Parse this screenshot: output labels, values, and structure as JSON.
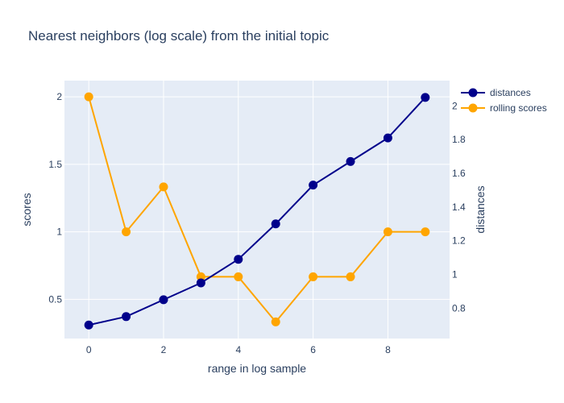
{
  "chart_data": {
    "type": "line",
    "title": "Nearest neighbors (log scale) from the initial topic",
    "xlabel": "range in log sample",
    "ylabel_left": "scores",
    "ylabel_right": "distances",
    "x": [
      0,
      1,
      2,
      3,
      4,
      5,
      6,
      7,
      8,
      9
    ],
    "xlim": [
      -0.65,
      9.65
    ],
    "ylim_left": [
      0.21,
      2.12
    ],
    "ylim_right": [
      0.62,
      2.15
    ],
    "x_ticks": [
      0,
      2,
      4,
      6,
      8
    ],
    "y_ticks_left": [
      0.5,
      1,
      1.5,
      2
    ],
    "y_ticks_right": [
      0.8,
      1,
      1.2,
      1.4,
      1.6,
      1.8,
      2
    ],
    "grid": true,
    "legend_position": "top-right",
    "series": [
      {
        "name": "distances",
        "axis": "right",
        "color": "#00008b",
        "values": [
          0.7,
          0.75,
          0.85,
          0.95,
          1.09,
          1.3,
          1.53,
          1.67,
          1.81,
          2.05
        ]
      },
      {
        "name": "rolling scores",
        "axis": "left",
        "color": "#ffa500",
        "values": [
          2.0,
          1.0,
          1.333,
          0.667,
          0.667,
          0.333,
          0.667,
          0.667,
          1.0,
          1.0
        ]
      }
    ],
    "colors": {
      "plot_bg": "#e5ecf6",
      "grid": "#ffffff",
      "text": "#2a3f5f"
    }
  }
}
